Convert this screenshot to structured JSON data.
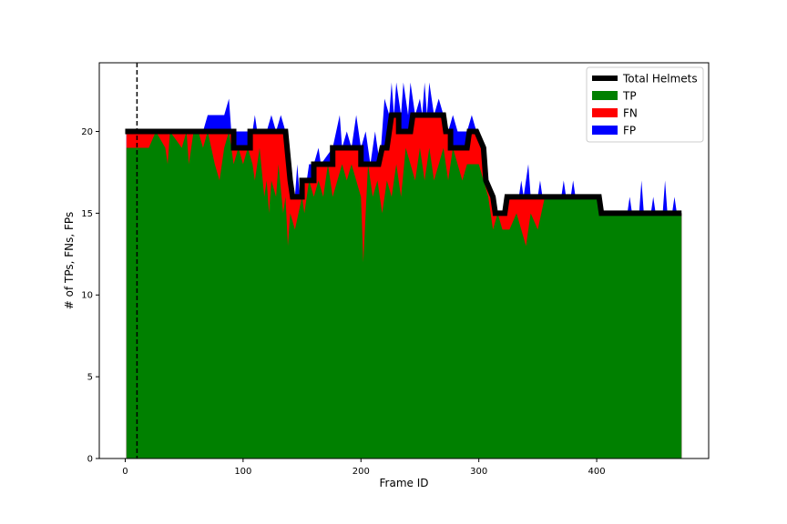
{
  "chart_data": {
    "type": "area",
    "xlabel": "Frame ID",
    "ylabel": "# of TPs, FNs, FPs",
    "xlim": [
      -22,
      495
    ],
    "ylim": [
      0,
      24.2
    ],
    "x_ticks": [
      0,
      100,
      200,
      300,
      400
    ],
    "y_ticks": [
      0,
      5,
      10,
      15,
      20
    ],
    "legend_position": "top-right",
    "grid": false,
    "vline_x": 10,
    "colors": {
      "total": "#000000",
      "tp": "#008000",
      "fn": "#ff0000",
      "fp": "#0000ff"
    },
    "series": [
      {
        "name": "Total Helmets",
        "kind": "line",
        "points": [
          [
            0,
            20
          ],
          [
            92,
            20
          ],
          [
            92,
            19
          ],
          [
            106,
            19
          ],
          [
            106,
            20
          ],
          [
            136,
            20
          ],
          [
            140,
            17
          ],
          [
            142,
            16
          ],
          [
            150,
            16
          ],
          [
            150,
            17
          ],
          [
            160,
            17
          ],
          [
            160,
            18
          ],
          [
            176,
            18
          ],
          [
            176,
            19
          ],
          [
            200,
            19
          ],
          [
            200,
            18
          ],
          [
            215,
            18
          ],
          [
            218,
            19
          ],
          [
            222,
            19
          ],
          [
            226,
            21
          ],
          [
            232,
            21
          ],
          [
            232,
            20
          ],
          [
            242,
            20
          ],
          [
            244,
            21
          ],
          [
            270,
            21
          ],
          [
            272,
            20
          ],
          [
            276,
            20
          ],
          [
            276,
            19
          ],
          [
            290,
            19
          ],
          [
            292,
            20
          ],
          [
            298,
            20
          ],
          [
            304,
            19
          ],
          [
            306,
            17
          ],
          [
            312,
            16
          ],
          [
            314,
            15
          ],
          [
            322,
            15
          ],
          [
            324,
            16
          ],
          [
            402,
            16
          ],
          [
            404,
            15
          ],
          [
            472,
            15
          ]
        ]
      },
      {
        "name": "TP",
        "kind": "area",
        "points": [
          [
            1,
            19
          ],
          [
            20,
            19
          ],
          [
            26,
            20
          ],
          [
            34,
            19
          ],
          [
            36,
            18
          ],
          [
            38,
            20
          ],
          [
            48,
            19
          ],
          [
            52,
            20
          ],
          [
            54,
            18
          ],
          [
            58,
            20
          ],
          [
            62,
            20
          ],
          [
            66,
            19
          ],
          [
            70,
            20
          ],
          [
            76,
            18
          ],
          [
            80,
            17
          ],
          [
            84,
            19
          ],
          [
            88,
            20
          ],
          [
            92,
            18
          ],
          [
            96,
            19
          ],
          [
            100,
            18
          ],
          [
            104,
            19
          ],
          [
            108,
            18
          ],
          [
            110,
            17
          ],
          [
            114,
            19
          ],
          [
            118,
            16
          ],
          [
            120,
            17
          ],
          [
            122,
            15
          ],
          [
            124,
            17
          ],
          [
            128,
            16
          ],
          [
            130,
            18
          ],
          [
            134,
            15
          ],
          [
            136,
            16
          ],
          [
            138,
            13
          ],
          [
            140,
            15
          ],
          [
            144,
            14
          ],
          [
            150,
            16
          ],
          [
            152,
            15
          ],
          [
            156,
            17
          ],
          [
            160,
            16
          ],
          [
            164,
            17
          ],
          [
            168,
            16
          ],
          [
            172,
            18
          ],
          [
            176,
            16
          ],
          [
            180,
            17
          ],
          [
            184,
            18
          ],
          [
            188,
            17
          ],
          [
            192,
            18
          ],
          [
            196,
            17
          ],
          [
            200,
            16
          ],
          [
            202,
            12
          ],
          [
            206,
            18
          ],
          [
            210,
            16
          ],
          [
            214,
            17
          ],
          [
            218,
            15
          ],
          [
            222,
            17
          ],
          [
            226,
            16
          ],
          [
            230,
            18
          ],
          [
            234,
            16
          ],
          [
            238,
            19
          ],
          [
            242,
            18
          ],
          [
            246,
            17
          ],
          [
            250,
            19
          ],
          [
            254,
            17
          ],
          [
            258,
            19
          ],
          [
            262,
            17
          ],
          [
            266,
            18
          ],
          [
            270,
            19
          ],
          [
            274,
            17
          ],
          [
            278,
            19
          ],
          [
            282,
            18
          ],
          [
            286,
            17
          ],
          [
            290,
            18
          ],
          [
            294,
            18
          ],
          [
            300,
            18
          ],
          [
            304,
            17
          ],
          [
            308,
            16
          ],
          [
            312,
            14
          ],
          [
            316,
            15
          ],
          [
            320,
            14
          ],
          [
            326,
            14
          ],
          [
            332,
            15
          ],
          [
            336,
            14
          ],
          [
            340,
            13
          ],
          [
            344,
            15
          ],
          [
            350,
            14
          ],
          [
            356,
            16
          ],
          [
            402,
            16
          ],
          [
            404,
            15
          ],
          [
            472,
            15
          ]
        ]
      },
      {
        "name": "FN",
        "kind": "area",
        "points": [
          [
            1,
            20
          ],
          [
            92,
            20
          ],
          [
            92,
            19
          ],
          [
            106,
            19
          ],
          [
            106,
            20
          ],
          [
            136,
            20
          ],
          [
            140,
            17
          ],
          [
            142,
            16
          ],
          [
            150,
            16
          ],
          [
            150,
            17
          ],
          [
            160,
            17
          ],
          [
            160,
            18
          ],
          [
            176,
            18
          ],
          [
            176,
            19
          ],
          [
            200,
            19
          ],
          [
            200,
            18
          ],
          [
            215,
            18
          ],
          [
            218,
            19
          ],
          [
            222,
            19
          ],
          [
            226,
            21
          ],
          [
            232,
            21
          ],
          [
            232,
            20
          ],
          [
            242,
            20
          ],
          [
            244,
            21
          ],
          [
            270,
            21
          ],
          [
            272,
            20
          ],
          [
            276,
            20
          ],
          [
            276,
            19
          ],
          [
            290,
            19
          ],
          [
            292,
            20
          ],
          [
            298,
            20
          ],
          [
            304,
            19
          ],
          [
            306,
            17
          ],
          [
            312,
            16
          ],
          [
            314,
            15
          ],
          [
            322,
            15
          ],
          [
            324,
            16
          ],
          [
            402,
            16
          ],
          [
            404,
            15
          ],
          [
            472,
            15
          ]
        ]
      },
      {
        "name": "FP",
        "kind": "area",
        "points": [
          [
            1,
            20
          ],
          [
            66,
            20
          ],
          [
            70,
            21
          ],
          [
            84,
            21
          ],
          [
            88,
            22
          ],
          [
            90,
            20
          ],
          [
            108,
            20
          ],
          [
            110,
            21
          ],
          [
            112,
            20
          ],
          [
            120,
            20
          ],
          [
            124,
            21
          ],
          [
            128,
            20
          ],
          [
            132,
            21
          ],
          [
            136,
            20
          ],
          [
            140,
            18
          ],
          [
            142,
            17
          ],
          [
            144,
            16
          ],
          [
            146,
            18
          ],
          [
            148,
            16
          ],
          [
            150,
            17
          ],
          [
            154,
            17
          ],
          [
            156,
            18
          ],
          [
            160,
            18
          ],
          [
            164,
            19
          ],
          [
            166,
            18
          ],
          [
            176,
            19
          ],
          [
            182,
            21
          ],
          [
            184,
            19
          ],
          [
            188,
            20
          ],
          [
            192,
            19
          ],
          [
            196,
            21
          ],
          [
            200,
            19
          ],
          [
            204,
            20
          ],
          [
            208,
            18
          ],
          [
            212,
            20
          ],
          [
            216,
            18
          ],
          [
            218,
            20
          ],
          [
            220,
            22
          ],
          [
            224,
            21
          ],
          [
            226,
            23
          ],
          [
            228,
            21
          ],
          [
            230,
            23
          ],
          [
            234,
            21
          ],
          [
            236,
            23
          ],
          [
            240,
            21
          ],
          [
            242,
            23
          ],
          [
            246,
            21
          ],
          [
            250,
            22
          ],
          [
            252,
            21
          ],
          [
            254,
            23
          ],
          [
            256,
            21
          ],
          [
            258,
            23
          ],
          [
            262,
            21
          ],
          [
            266,
            22
          ],
          [
            270,
            21
          ],
          [
            274,
            20
          ],
          [
            278,
            21
          ],
          [
            282,
            20
          ],
          [
            290,
            20
          ],
          [
            294,
            21
          ],
          [
            298,
            20
          ],
          [
            304,
            19
          ],
          [
            306,
            17
          ],
          [
            312,
            16
          ],
          [
            314,
            15
          ],
          [
            322,
            15
          ],
          [
            324,
            16
          ],
          [
            334,
            16
          ],
          [
            336,
            17
          ],
          [
            338,
            16
          ],
          [
            342,
            18
          ],
          [
            344,
            16
          ],
          [
            350,
            16
          ],
          [
            352,
            17
          ],
          [
            354,
            16
          ],
          [
            370,
            16
          ],
          [
            372,
            17
          ],
          [
            374,
            16
          ],
          [
            378,
            16
          ],
          [
            380,
            17
          ],
          [
            382,
            16
          ],
          [
            402,
            16
          ],
          [
            404,
            15
          ],
          [
            426,
            15
          ],
          [
            428,
            16
          ],
          [
            430,
            15
          ],
          [
            436,
            15
          ],
          [
            438,
            17
          ],
          [
            440,
            15
          ],
          [
            446,
            15
          ],
          [
            448,
            16
          ],
          [
            450,
            15
          ],
          [
            456,
            15
          ],
          [
            458,
            17
          ],
          [
            460,
            15
          ],
          [
            464,
            15
          ],
          [
            466,
            16
          ],
          [
            468,
            15
          ],
          [
            472,
            15
          ]
        ]
      }
    ]
  }
}
